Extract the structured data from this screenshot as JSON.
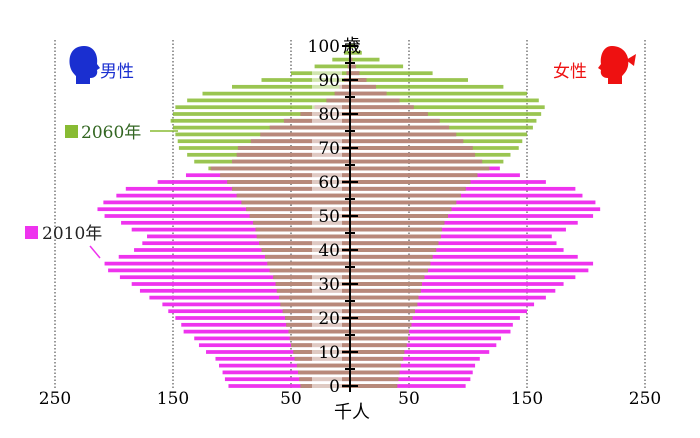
{
  "chart_data": {
    "type": "bar",
    "subtype": "population-pyramid",
    "ylabel": "歳",
    "xlabel": "千人",
    "male_label": "男性",
    "female_label": "女性",
    "x_ticks": [
      "250",
      "150",
      "50",
      "50",
      "150",
      "250"
    ],
    "y_ticks": [
      "0",
      "10",
      "20",
      "30",
      "40",
      "50",
      "60",
      "70",
      "80",
      "90",
      "100"
    ],
    "xlim": [
      -250,
      250
    ],
    "ylim": [
      0,
      100
    ],
    "legend_placement": "left",
    "colors": {
      "y2010": "#ee33ee",
      "y2060": "#88bb33",
      "overlap": "#b8887a",
      "axis": "#000000"
    },
    "ages": [
      0,
      2,
      4,
      6,
      8,
      10,
      12,
      14,
      16,
      18,
      20,
      22,
      24,
      26,
      28,
      30,
      32,
      34,
      36,
      38,
      40,
      42,
      44,
      46,
      48,
      50,
      52,
      54,
      56,
      58,
      60,
      62,
      64,
      66,
      68,
      70,
      72,
      74,
      76,
      78,
      80,
      82,
      84,
      86,
      88,
      90,
      92,
      94,
      96,
      98,
      100
    ],
    "series": [
      {
        "name": "2010年",
        "male": [
          103,
          106,
          108,
          111,
          114,
          122,
          128,
          132,
          141,
          143,
          148,
          154,
          159,
          170,
          178,
          185,
          195,
          205,
          208,
          196,
          183,
          176,
          172,
          185,
          194,
          208,
          214,
          209,
          198,
          190,
          163,
          139,
          118,
          100,
          96,
          95,
          84,
          76,
          68,
          56,
          42,
          30,
          20,
          13,
          9,
          5,
          3,
          2,
          1,
          0.5,
          0.2
        ],
        "female": [
          98,
          102,
          104,
          106,
          110,
          118,
          124,
          128,
          136,
          138,
          144,
          150,
          156,
          166,
          174,
          181,
          191,
          202,
          206,
          193,
          181,
          175,
          171,
          183,
          193,
          206,
          212,
          208,
          197,
          191,
          166,
          144,
          127,
          112,
          106,
          104,
          96,
          90,
          84,
          76,
          66,
          54,
          42,
          31,
          22,
          14,
          8,
          5,
          2,
          1,
          0.5
        ]
      },
      {
        "name": "2060年",
        "male": [
          42,
          43,
          44,
          45,
          47,
          48,
          50,
          51,
          52,
          54,
          55,
          57,
          59,
          60,
          62,
          63,
          65,
          68,
          70,
          72,
          75,
          77,
          79,
          80,
          82,
          85,
          88,
          92,
          96,
          100,
          104,
          110,
          120,
          132,
          138,
          145,
          146,
          148,
          150,
          152,
          150,
          148,
          138,
          125,
          100,
          75,
          50,
          30,
          15,
          5,
          2
        ],
        "female": [
          40,
          41,
          42,
          43,
          45,
          46,
          48,
          49,
          50,
          52,
          53,
          55,
          57,
          58,
          60,
          61,
          63,
          66,
          68,
          70,
          73,
          75,
          77,
          78,
          80,
          83,
          86,
          90,
          94,
          98,
          102,
          108,
          118,
          130,
          136,
          143,
          146,
          150,
          155,
          158,
          162,
          165,
          160,
          150,
          130,
          100,
          70,
          45,
          25,
          10,
          4
        ]
      }
    ]
  }
}
